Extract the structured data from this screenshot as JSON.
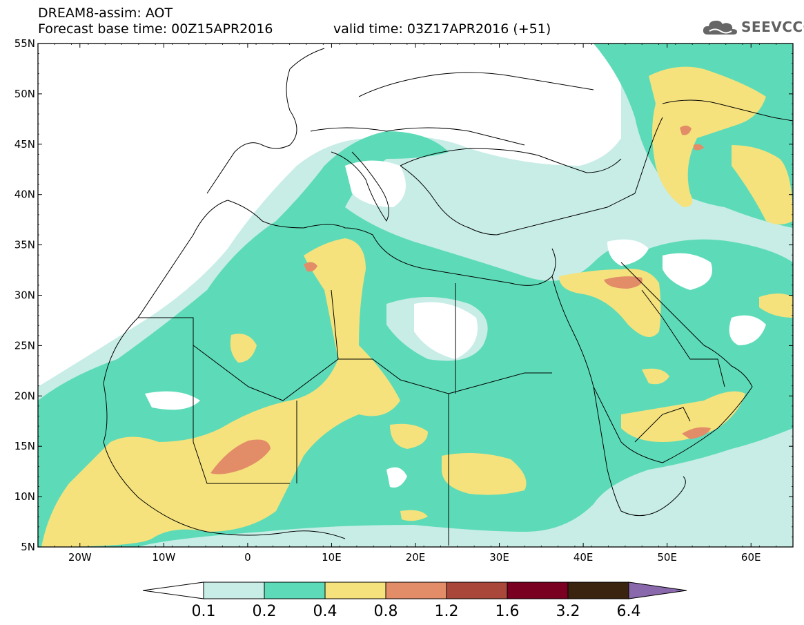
{
  "header": {
    "line1": "DREAM8-assim: AOT",
    "line2": "Forecast base time: 00Z15APR2016",
    "line3": "valid time: 03Z17APR2016 (+51)"
  },
  "logo": {
    "text": "SEEVCCC",
    "icon": "cloud-icon"
  },
  "map": {
    "lon_range": [
      -25,
      65
    ],
    "lat_range": [
      5,
      55
    ],
    "lat_ticks": [
      {
        "value": 55,
        "label": "55N"
      },
      {
        "value": 50,
        "label": "50N"
      },
      {
        "value": 45,
        "label": "45N"
      },
      {
        "value": 40,
        "label": "40N"
      },
      {
        "value": 35,
        "label": "35N"
      },
      {
        "value": 30,
        "label": "30N"
      },
      {
        "value": 25,
        "label": "25N"
      },
      {
        "value": 20,
        "label": "20N"
      },
      {
        "value": 15,
        "label": "15N"
      },
      {
        "value": 10,
        "label": "10N"
      },
      {
        "value": 5,
        "label": "5N"
      }
    ],
    "lon_ticks": [
      {
        "value": -20,
        "label": "20W"
      },
      {
        "value": -10,
        "label": "10W"
      },
      {
        "value": 0,
        "label": "0"
      },
      {
        "value": 10,
        "label": "10E"
      },
      {
        "value": 20,
        "label": "20E"
      },
      {
        "value": 30,
        "label": "30E"
      },
      {
        "value": 40,
        "label": "40E"
      },
      {
        "value": 50,
        "label": "50E"
      },
      {
        "value": 60,
        "label": "60E"
      }
    ]
  },
  "colorbar": {
    "labels": [
      "0.1",
      "0.2",
      "0.4",
      "0.8",
      "1.2",
      "1.6",
      "3.2",
      "6.4"
    ],
    "colors": {
      "under": "#ffffff",
      "b1": "#c7ede6",
      "b2": "#5ddbb8",
      "b3": "#f5e27c",
      "b4": "#e28c68",
      "b5": "#a9483a",
      "b6": "#7a0022",
      "b7": "#3a2410",
      "over": "#8a68ac"
    }
  }
}
